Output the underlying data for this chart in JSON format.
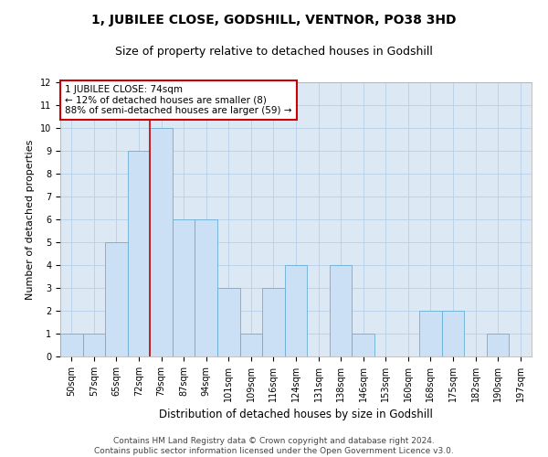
{
  "title": "1, JUBILEE CLOSE, GODSHILL, VENTNOR, PO38 3HD",
  "subtitle": "Size of property relative to detached houses in Godshill",
  "xlabel": "Distribution of detached houses by size in Godshill",
  "ylabel": "Number of detached properties",
  "categories": [
    "50sqm",
    "57sqm",
    "65sqm",
    "72sqm",
    "79sqm",
    "87sqm",
    "94sqm",
    "101sqm",
    "109sqm",
    "116sqm",
    "124sqm",
    "131sqm",
    "138sqm",
    "146sqm",
    "153sqm",
    "160sqm",
    "168sqm",
    "175sqm",
    "182sqm",
    "190sqm",
    "197sqm"
  ],
  "values": [
    1,
    1,
    5,
    9,
    10,
    6,
    6,
    3,
    1,
    3,
    4,
    0,
    4,
    1,
    0,
    0,
    2,
    2,
    0,
    1,
    0
  ],
  "bar_color": "#cce0f5",
  "bar_edge_color": "#6aaed6",
  "property_line_x": 3.5,
  "annotation_line1": "1 JUBILEE CLOSE: 74sqm",
  "annotation_line2": "← 12% of detached houses are smaller (8)",
  "annotation_line3": "88% of semi-detached houses are larger (59) →",
  "annotation_box_color": "#ffffff",
  "annotation_box_edge_color": "#cc0000",
  "annotation_fontsize": 7.5,
  "title_fontsize": 10,
  "subtitle_fontsize": 9,
  "xlabel_fontsize": 8.5,
  "ylabel_fontsize": 8,
  "tick_fontsize": 7,
  "ylim": [
    0,
    12
  ],
  "yticks": [
    0,
    1,
    2,
    3,
    4,
    5,
    6,
    7,
    8,
    9,
    10,
    11,
    12
  ],
  "plot_bg_color": "#dce9f5",
  "background_color": "#ffffff",
  "grid_color": "#b8cfe8",
  "footer_line1": "Contains HM Land Registry data © Crown copyright and database right 2024.",
  "footer_line2": "Contains public sector information licensed under the Open Government Licence v3.0.",
  "footer_fontsize": 6.5
}
